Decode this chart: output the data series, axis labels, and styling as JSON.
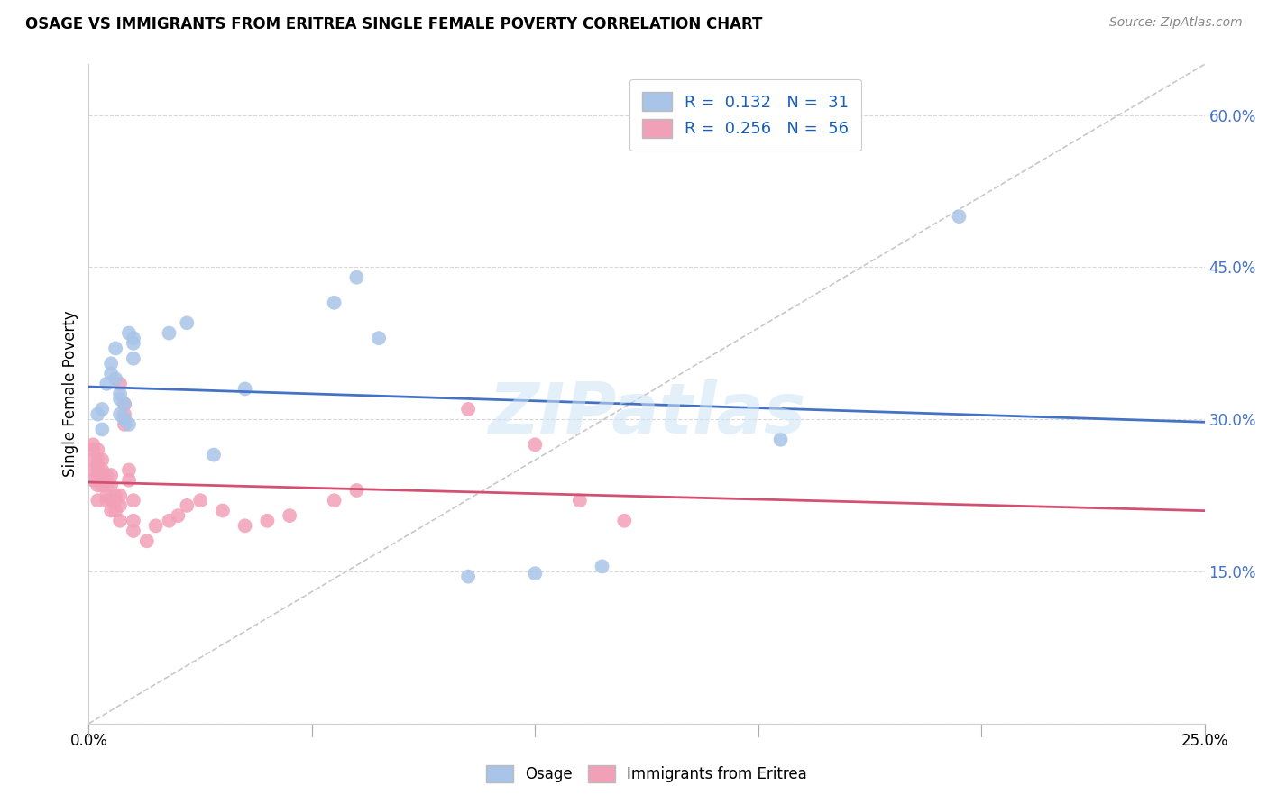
{
  "title": "OSAGE VS IMMIGRANTS FROM ERITREA SINGLE FEMALE POVERTY CORRELATION CHART",
  "source": "Source: ZipAtlas.com",
  "ylabel": "Single Female Poverty",
  "xlim": [
    0.0,
    0.25
  ],
  "ylim": [
    0.0,
    0.65
  ],
  "xticks": [
    0.0,
    0.05,
    0.1,
    0.15,
    0.2,
    0.25
  ],
  "yticks": [
    0.0,
    0.15,
    0.3,
    0.45,
    0.6
  ],
  "ytick_labels": [
    "",
    "15.0%",
    "30.0%",
    "45.0%",
    "60.0%"
  ],
  "xtick_labels": [
    "0.0%",
    "",
    "",
    "",
    "",
    "25.0%"
  ],
  "osage_color": "#a8c4e8",
  "eritrea_color": "#f2a0b8",
  "osage_line_color": "#4472c4",
  "eritrea_line_color": "#d45070",
  "diagonal_color": "#c8c8c8",
  "watermark": "ZIPatlas",
  "osage_x": [
    0.002,
    0.003,
    0.003,
    0.004,
    0.005,
    0.005,
    0.006,
    0.006,
    0.007,
    0.007,
    0.007,
    0.008,
    0.008,
    0.008,
    0.009,
    0.009,
    0.01,
    0.01,
    0.01,
    0.018,
    0.022,
    0.028,
    0.035,
    0.055,
    0.06,
    0.065,
    0.085,
    0.1,
    0.115,
    0.155,
    0.195
  ],
  "osage_y": [
    0.305,
    0.31,
    0.29,
    0.335,
    0.345,
    0.355,
    0.34,
    0.37,
    0.305,
    0.32,
    0.325,
    0.3,
    0.3,
    0.315,
    0.295,
    0.385,
    0.36,
    0.375,
    0.38,
    0.385,
    0.395,
    0.265,
    0.33,
    0.415,
    0.44,
    0.38,
    0.145,
    0.148,
    0.155,
    0.28,
    0.5
  ],
  "eritrea_x": [
    0.001,
    0.001,
    0.001,
    0.001,
    0.001,
    0.002,
    0.002,
    0.002,
    0.002,
    0.002,
    0.002,
    0.002,
    0.003,
    0.003,
    0.003,
    0.003,
    0.004,
    0.004,
    0.004,
    0.004,
    0.005,
    0.005,
    0.005,
    0.005,
    0.006,
    0.006,
    0.006,
    0.007,
    0.007,
    0.007,
    0.007,
    0.008,
    0.008,
    0.008,
    0.009,
    0.009,
    0.01,
    0.01,
    0.01,
    0.013,
    0.015,
    0.018,
    0.02,
    0.022,
    0.025,
    0.03,
    0.035,
    0.04,
    0.045,
    0.055,
    0.06,
    0.085,
    0.1,
    0.11,
    0.12
  ],
  "eritrea_y": [
    0.24,
    0.25,
    0.26,
    0.27,
    0.275,
    0.22,
    0.235,
    0.245,
    0.25,
    0.255,
    0.26,
    0.27,
    0.235,
    0.245,
    0.25,
    0.26,
    0.22,
    0.225,
    0.235,
    0.245,
    0.21,
    0.22,
    0.235,
    0.245,
    0.21,
    0.22,
    0.225,
    0.2,
    0.215,
    0.225,
    0.335,
    0.295,
    0.305,
    0.315,
    0.24,
    0.25,
    0.19,
    0.2,
    0.22,
    0.18,
    0.195,
    0.2,
    0.205,
    0.215,
    0.22,
    0.21,
    0.195,
    0.2,
    0.205,
    0.22,
    0.23,
    0.31,
    0.275,
    0.22,
    0.2
  ]
}
